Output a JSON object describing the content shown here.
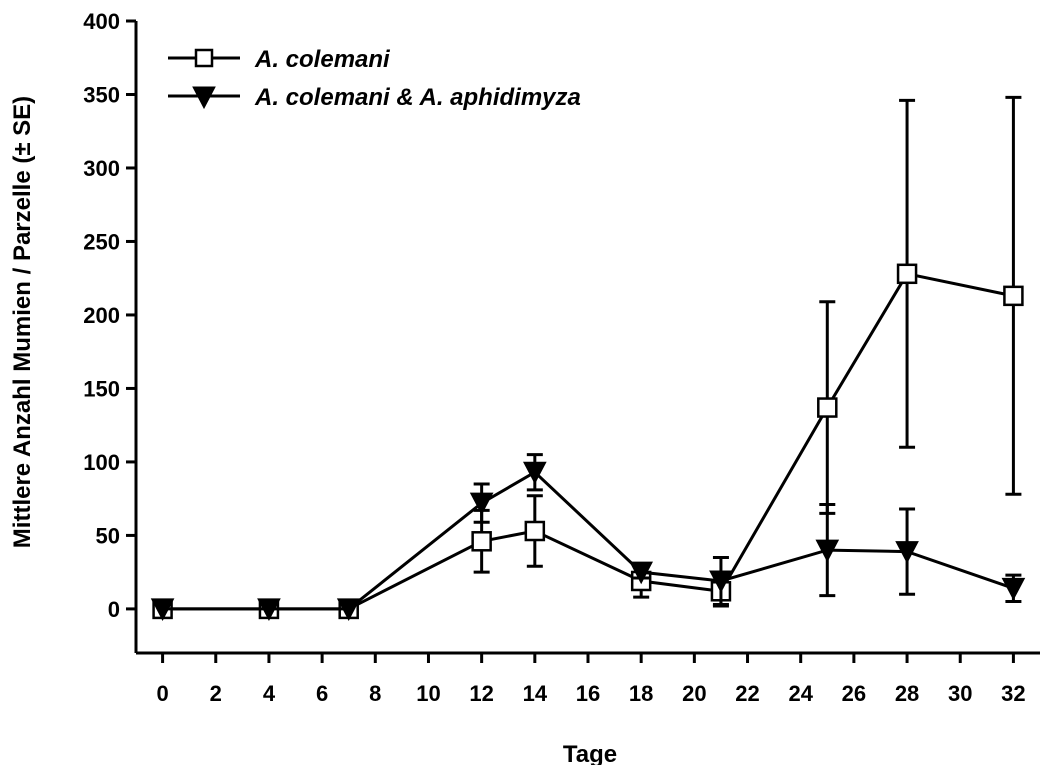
{
  "chart_data": {
    "type": "line",
    "title": "",
    "xlabel": "Tage",
    "ylabel": "Mittlere Anzahl Mumien / Parzelle (± SE)",
    "xlim": [
      -1,
      33
    ],
    "ylim": [
      -30,
      400
    ],
    "xticks": [
      0,
      2,
      4,
      6,
      8,
      10,
      12,
      14,
      16,
      18,
      20,
      22,
      24,
      26,
      28,
      30,
      32
    ],
    "yticks": [
      0,
      50,
      100,
      150,
      200,
      250,
      300,
      350,
      400
    ],
    "grid": false,
    "legend_position": "top-left",
    "series": [
      {
        "name": "A. colemani",
        "marker": "open-square",
        "color": "#000000",
        "x": [
          0,
          4,
          7,
          12,
          14,
          18,
          21,
          25,
          28,
          32
        ],
        "y": [
          0,
          0,
          0,
          46,
          53,
          19,
          12,
          137,
          228,
          213
        ],
        "err": [
          0,
          0,
          0,
          21,
          24,
          11,
          10,
          72,
          118,
          135
        ]
      },
      {
        "name": "A. colemani & A. aphidimyza",
        "marker": "filled-triangle-down",
        "color": "#000000",
        "x": [
          0,
          4,
          7,
          12,
          14,
          18,
          21,
          25,
          28,
          32
        ],
        "y": [
          0,
          0,
          0,
          72,
          93,
          25,
          19,
          40,
          39,
          14
        ],
        "err": [
          0,
          0,
          0,
          13,
          12,
          4,
          16,
          31,
          29,
          9
        ]
      }
    ]
  }
}
